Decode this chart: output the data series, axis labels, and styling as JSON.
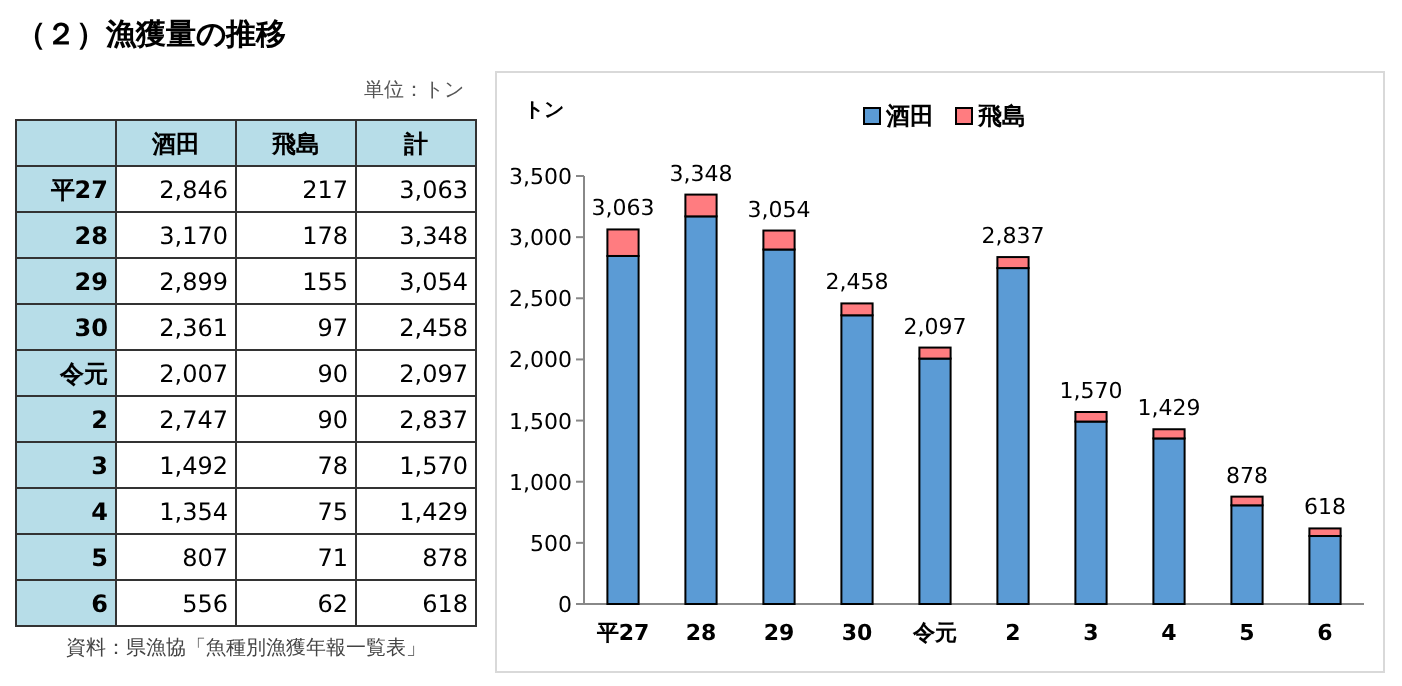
{
  "chart_data": [
    {
      "type": "other",
      "title": "（２）漁獲量の推移",
      "categories": [
        "平27",
        "28",
        "29",
        "30",
        "令元",
        "2",
        "3",
        "4",
        "5",
        "6"
      ],
      "annotations": [
        "単位：トン",
        "酒田",
        "飛島",
        "計",
        "資料：県漁協「魚種別漁獲年報一覧表」",
        "2,846",
        "217",
        "3,063",
        "3,170",
        "178",
        "3,348",
        "2,899",
        "155",
        "3,054",
        "2,361",
        "97",
        "2,458",
        "2,007",
        "90",
        "2,097",
        "2,747",
        "90",
        "2,837",
        "1,492",
        "78",
        "1,570",
        "1,354",
        "75",
        "1,429",
        "807",
        "71",
        "878",
        "556",
        "62",
        "618"
      ]
    },
    {
      "type": "bar",
      "ylabel": "トン",
      "categories": [
        "平27",
        "28",
        "29",
        "30",
        "令元",
        "2",
        "3",
        "4",
        "5",
        "6"
      ],
      "series": [
        {
          "name": "酒田",
          "color": "#5b9bd5",
          "values": [
            2846,
            3170,
            2899,
            2361,
            2007,
            2747,
            1492,
            1354,
            807,
            556
          ]
        },
        {
          "name": "飛島",
          "color": "#ff7c80",
          "values": [
            217,
            178,
            155,
            97,
            90,
            90,
            78,
            75,
            71,
            62
          ]
        }
      ],
      "stacked": true,
      "totals": [
        "3,063",
        "3,348",
        "3,054",
        "2,458",
        "2,097",
        "2,837",
        "1,570",
        "1,429",
        "878",
        "618"
      ],
      "ylim": [
        0,
        3500
      ],
      "yticks": [
        0,
        500,
        {
          "value": 1000,
          "label": "1,000"
        },
        {
          "value": 1500,
          "label": "1,500"
        },
        {
          "value": 2000,
          "label": "2,000"
        },
        {
          "value": 2500,
          "label": "2,500"
        },
        {
          "value": 3000,
          "label": "3,000"
        },
        {
          "value": 3500,
          "label": "3,500"
        }
      ],
      "legend": "top"
    }
  ]
}
